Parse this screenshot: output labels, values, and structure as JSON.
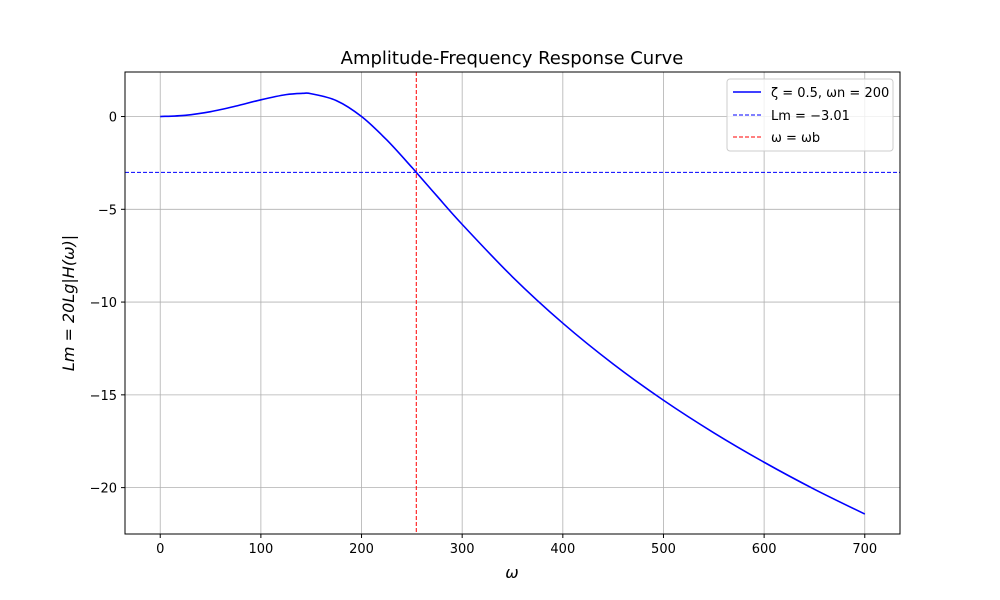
{
  "chart_data": {
    "type": "line",
    "title": "Amplitude-Frequency Response Curve",
    "xlabel": "ω",
    "ylabel": "Lm = 20Lg|H(ω)|",
    "xlim": [
      -35,
      735
    ],
    "ylim": [
      -22.5,
      2.4
    ],
    "xticks": [
      0,
      100,
      200,
      300,
      400,
      500,
      600,
      700
    ],
    "yticks": [
      0,
      -5,
      -10,
      -15,
      -20
    ],
    "ytick_labels": [
      "0",
      "−5",
      "−10",
      "−15",
      "−20"
    ],
    "grid": true,
    "legend_position": "top-right",
    "series": [
      {
        "name": "ζ = 0.5, ωn = 200",
        "color": "#0000ff",
        "style": "solid",
        "x": [
          0,
          25,
          50,
          75,
          100,
          125,
          141.4,
          150,
          175,
          200,
          225,
          250,
          254.4,
          275,
          300,
          350,
          400,
          450,
          500,
          550,
          600,
          650,
          700
        ],
        "y": [
          0,
          0.067,
          0.262,
          0.559,
          0.902,
          1.18,
          1.249,
          1.227,
          0.859,
          0,
          -1.258,
          -2.739,
          -3.01,
          -4.288,
          -5.812,
          -8.643,
          -11.139,
          -13.338,
          -15.291,
          -17.044,
          -18.633,
          -20.09,
          -21.424
        ]
      }
    ],
    "hlines": [
      {
        "name": "Lm = −3.01",
        "y": -3.01,
        "color": "#0000ff",
        "style": "dashed"
      }
    ],
    "vlines": [
      {
        "name": "ω = ωb",
        "x": 254.4,
        "color": "#ff0000",
        "style": "dashed"
      }
    ]
  }
}
